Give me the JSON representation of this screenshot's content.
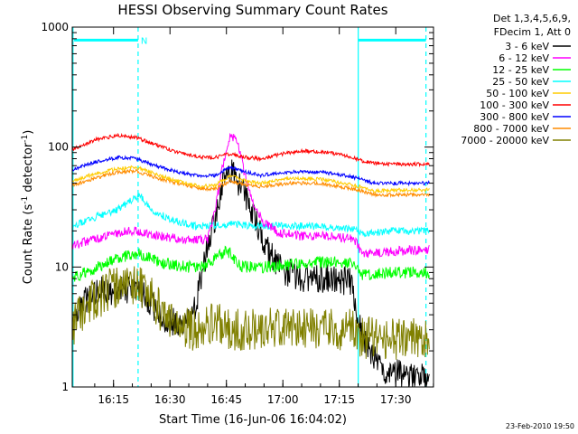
{
  "chart_data": {
    "type": "line",
    "title": "HESSI Observing Summary Count Rates",
    "xlabel": "Start Time (16-Jun-06 16:04:02)",
    "ylabel_main": "Count Rate (s",
    "ylabel_sup1": "-1",
    "ylabel_mid": " detector",
    "ylabel_sup2": "-1",
    "ylabel_end": ")",
    "y_scale": "log",
    "ylim": [
      1,
      1000
    ],
    "xlim_minutes": [
      0,
      96
    ],
    "x_ticks": [
      {
        "label": "16:15",
        "minutes": 10.97
      },
      {
        "label": "16:30",
        "minutes": 25.97
      },
      {
        "label": "16:45",
        "minutes": 40.97
      },
      {
        "label": "17:00",
        "minutes": 55.97
      },
      {
        "label": "17:15",
        "minutes": 70.97
      },
      {
        "label": "17:30",
        "minutes": 85.97
      }
    ],
    "y_ticks": [
      {
        "label": "1",
        "value": 1
      },
      {
        "label": "10",
        "value": 10
      },
      {
        "label": "100",
        "value": 100
      },
      {
        "label": "1000",
        "value": 1000
      }
    ],
    "header": [
      "Det 1,3,4,5,6,9,",
      "FDecim 1, Att 0"
    ],
    "legend_position": "top-right",
    "footer": "23-Feb-2010 19:50",
    "annotation": "N",
    "night_bars": [
      {
        "x_start": 0.5,
        "x_end": 17.5,
        "y": 780
      },
      {
        "x_start": 76,
        "x_end": 94,
        "y": 780
      }
    ],
    "vlines_solid": [
      0.2,
      76
    ],
    "vlines_dashed": [
      17.5,
      94
    ],
    "series": [
      {
        "name": "3 - 6 keV",
        "color": "#000000",
        "noise": 0.12,
        "points": [
          [
            0,
            3.2
          ],
          [
            3,
            5
          ],
          [
            7,
            6.5
          ],
          [
            12,
            6.3
          ],
          [
            17,
            6.5
          ],
          [
            21,
            5
          ],
          [
            25,
            3.5
          ],
          [
            30,
            3.5
          ],
          [
            33,
            5
          ],
          [
            36,
            15
          ],
          [
            39,
            35
          ],
          [
            41,
            65
          ],
          [
            43,
            60
          ],
          [
            45,
            45
          ],
          [
            48,
            26
          ],
          [
            51,
            16
          ],
          [
            54,
            11
          ],
          [
            57,
            9
          ],
          [
            62,
            8
          ],
          [
            68,
            8
          ],
          [
            74,
            7.5
          ],
          [
            76,
            3.5
          ],
          [
            78,
            2.2
          ],
          [
            82,
            1.4
          ],
          [
            86,
            1.3
          ],
          [
            90,
            1.2
          ],
          [
            95,
            1.2
          ]
        ]
      },
      {
        "name": "6 - 12 keV",
        "color": "#ff00ff",
        "noise": 0.04,
        "points": [
          [
            0,
            15
          ],
          [
            8,
            18
          ],
          [
            14,
            20
          ],
          [
            18,
            20
          ],
          [
            23,
            18
          ],
          [
            30,
            17
          ],
          [
            36,
            17
          ],
          [
            38,
            30
          ],
          [
            40,
            70
          ],
          [
            42,
            130
          ],
          [
            44,
            110
          ],
          [
            46,
            55
          ],
          [
            48,
            35
          ],
          [
            51,
            23
          ],
          [
            56,
            19
          ],
          [
            62,
            18
          ],
          [
            68,
            18
          ],
          [
            75,
            17
          ],
          [
            77,
            13
          ],
          [
            85,
            13.5
          ],
          [
            95,
            14
          ]
        ]
      },
      {
        "name": "12 - 25 keV",
        "color": "#00ff00",
        "noise": 0.05,
        "points": [
          [
            0,
            8
          ],
          [
            7,
            10
          ],
          [
            13,
            12
          ],
          [
            18,
            13
          ],
          [
            23,
            11
          ],
          [
            30,
            10
          ],
          [
            35,
            10
          ],
          [
            37,
            11
          ],
          [
            41,
            14
          ],
          [
            45,
            10
          ],
          [
            52,
            10
          ],
          [
            58,
            10.5
          ],
          [
            65,
            11
          ],
          [
            72,
            11
          ],
          [
            75,
            10.5
          ],
          [
            77,
            8.5
          ],
          [
            85,
            9
          ],
          [
            95,
            9
          ]
        ]
      },
      {
        "name": "25 - 50 keV",
        "color": "#00ffff",
        "noise": 0.03,
        "points": [
          [
            0,
            22
          ],
          [
            6,
            26
          ],
          [
            12,
            30
          ],
          [
            15,
            35
          ],
          [
            18,
            40
          ],
          [
            21,
            30
          ],
          [
            26,
            25
          ],
          [
            32,
            22
          ],
          [
            38,
            22
          ],
          [
            42,
            23
          ],
          [
            48,
            22
          ],
          [
            55,
            22
          ],
          [
            63,
            22
          ],
          [
            70,
            21
          ],
          [
            75,
            20.5
          ],
          [
            77,
            19
          ],
          [
            85,
            20
          ],
          [
            95,
            20
          ]
        ]
      },
      {
        "name": "50 - 100 keV",
        "color": "#ffcc00",
        "noise": 0.015,
        "points": [
          [
            0,
            52
          ],
          [
            6,
            60
          ],
          [
            12,
            66
          ],
          [
            17,
            68
          ],
          [
            22,
            60
          ],
          [
            28,
            52
          ],
          [
            34,
            47
          ],
          [
            38,
            48
          ],
          [
            42,
            58
          ],
          [
            46,
            52
          ],
          [
            50,
            50
          ],
          [
            58,
            55
          ],
          [
            66,
            54
          ],
          [
            72,
            50
          ],
          [
            76,
            47
          ],
          [
            80,
            43
          ],
          [
            88,
            44
          ],
          [
            95,
            44
          ]
        ]
      },
      {
        "name": "100 - 300 keV",
        "color": "#ff0000",
        "noise": 0.015,
        "points": [
          [
            0,
            95
          ],
          [
            6,
            115
          ],
          [
            12,
            125
          ],
          [
            17,
            120
          ],
          [
            22,
            105
          ],
          [
            28,
            90
          ],
          [
            34,
            82
          ],
          [
            38,
            82
          ],
          [
            42,
            88
          ],
          [
            46,
            82
          ],
          [
            50,
            80
          ],
          [
            56,
            88
          ],
          [
            62,
            93
          ],
          [
            68,
            90
          ],
          [
            74,
            83
          ],
          [
            78,
            75
          ],
          [
            84,
            72
          ],
          [
            90,
            72
          ],
          [
            95,
            72
          ]
        ]
      },
      {
        "name": "300 - 800 keV",
        "color": "#0000ff",
        "noise": 0.015,
        "points": [
          [
            0,
            65
          ],
          [
            6,
            75
          ],
          [
            12,
            82
          ],
          [
            17,
            80
          ],
          [
            22,
            70
          ],
          [
            28,
            62
          ],
          [
            34,
            57
          ],
          [
            38,
            58
          ],
          [
            42,
            68
          ],
          [
            46,
            62
          ],
          [
            50,
            58
          ],
          [
            58,
            62
          ],
          [
            66,
            62
          ],
          [
            72,
            58
          ],
          [
            76,
            55
          ],
          [
            80,
            50
          ],
          [
            88,
            50
          ],
          [
            95,
            50
          ]
        ]
      },
      {
        "name": "800 - 7000 keV",
        "color": "#ff8c00",
        "noise": 0.015,
        "points": [
          [
            0,
            48
          ],
          [
            6,
            55
          ],
          [
            12,
            62
          ],
          [
            17,
            63
          ],
          [
            22,
            56
          ],
          [
            28,
            50
          ],
          [
            34,
            45
          ],
          [
            38,
            45
          ],
          [
            42,
            52
          ],
          [
            46,
            48
          ],
          [
            50,
            47
          ],
          [
            58,
            50
          ],
          [
            66,
            50
          ],
          [
            72,
            46
          ],
          [
            76,
            44
          ],
          [
            80,
            40
          ],
          [
            88,
            40
          ],
          [
            95,
            40
          ]
        ]
      },
      {
        "name": "7000 - 20000 keV",
        "color": "#808000",
        "noise": 0.18,
        "points": [
          [
            0,
            3.2
          ],
          [
            5,
            5
          ],
          [
            10,
            6.5
          ],
          [
            15,
            7.5
          ],
          [
            18,
            7
          ],
          [
            22,
            5
          ],
          [
            26,
            3.5
          ],
          [
            32,
            3
          ],
          [
            38,
            3.5
          ],
          [
            42,
            3
          ],
          [
            48,
            3
          ],
          [
            58,
            3.2
          ],
          [
            68,
            3
          ],
          [
            75,
            3
          ],
          [
            77,
            2.6
          ],
          [
            85,
            2.5
          ],
          [
            95,
            2.5
          ]
        ]
      }
    ]
  }
}
